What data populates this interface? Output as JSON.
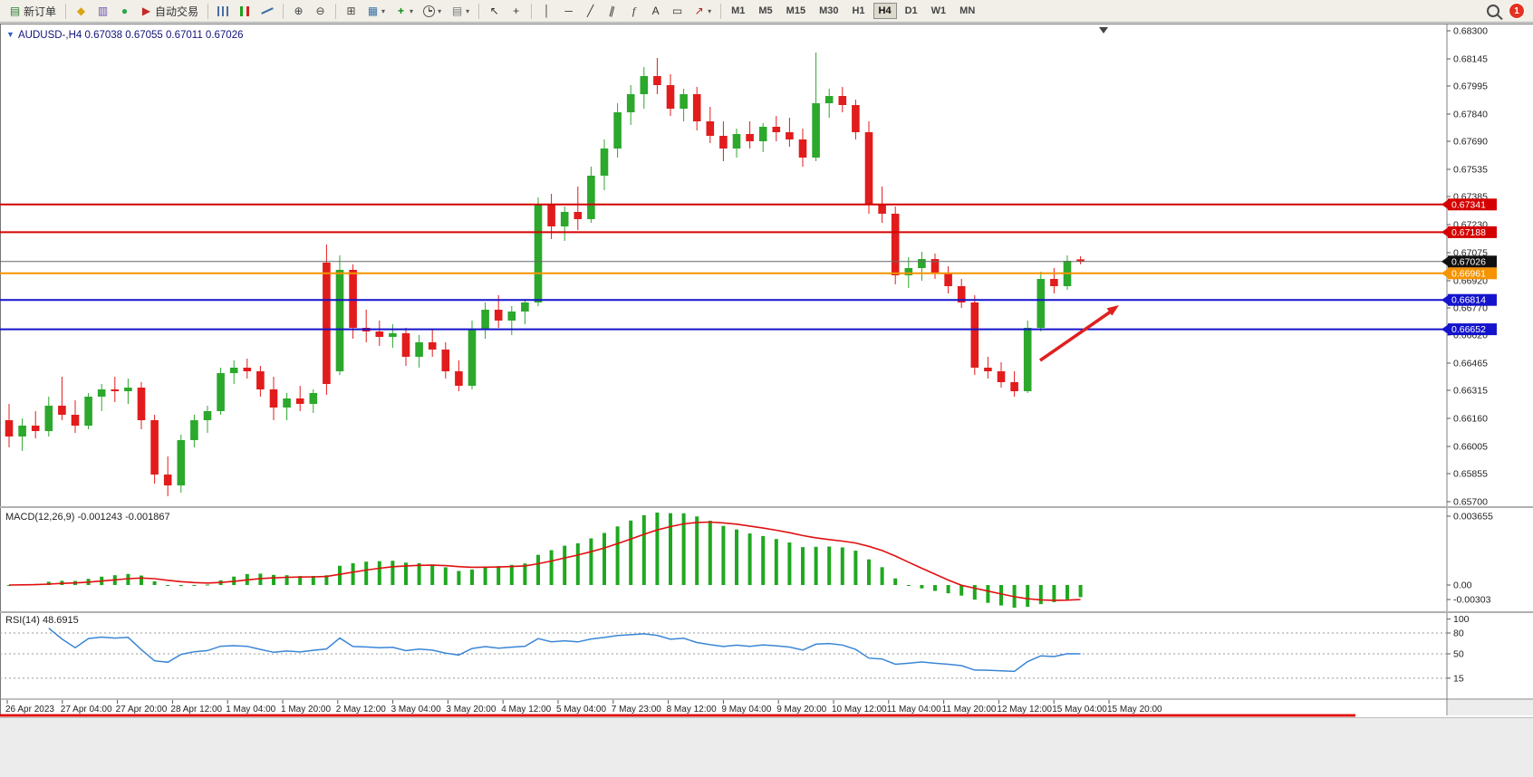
{
  "toolbar": {
    "badge_count": "1",
    "items": [
      {
        "name": "new-order",
        "icon": "new-order",
        "label": "新订单"
      },
      {
        "sep": true
      },
      {
        "name": "metaeditor",
        "icon": "metaeditor"
      },
      {
        "name": "market-watch",
        "icon": "market-watch"
      },
      {
        "name": "community",
        "icon": "community"
      },
      {
        "name": "auto-trading",
        "icon": "auto-trading",
        "label": "自动交易"
      },
      {
        "sep": true
      },
      {
        "name": "bar-chart",
        "icon": "bar-chart"
      },
      {
        "name": "candlestick-chart",
        "icon": "candlestick-chart"
      },
      {
        "name": "line-chart",
        "icon": "line-chart"
      },
      {
        "sep": true
      },
      {
        "name": "zoom-in",
        "icon": "zoom-in"
      },
      {
        "name": "zoom-out",
        "icon": "zoom-out"
      },
      {
        "sep": true
      },
      {
        "name": "tile-windows",
        "icon": "tile-windows"
      },
      {
        "name": "new-chart",
        "icon": "new-chart",
        "caret": true
      },
      {
        "name": "indicators",
        "icon": "indicators",
        "caret": true
      },
      {
        "name": "periods",
        "icon": "periods",
        "caret": true
      },
      {
        "name": "templates",
        "icon": "templates",
        "caret": true
      },
      {
        "sep": true
      },
      {
        "name": "cursor",
        "icon": "cursor"
      },
      {
        "name": "crosshair",
        "icon": "crosshair"
      },
      {
        "sep": true
      },
      {
        "name": "vertical-line",
        "icon": "vertical-line"
      },
      {
        "name": "horizontal-line",
        "icon": "horizontal-line"
      },
      {
        "name": "trendline",
        "icon": "trendline"
      },
      {
        "name": "equidistant-channel",
        "icon": "equidistant-channel"
      },
      {
        "name": "fibonacci",
        "icon": "fibonacci"
      },
      {
        "name": "text",
        "icon": "text"
      },
      {
        "name": "text-label",
        "icon": "text-label"
      },
      {
        "name": "arrows",
        "icon": "arrows",
        "caret": true
      },
      {
        "sep": true
      }
    ],
    "timeframes": [
      "M1",
      "M5",
      "M15",
      "M30",
      "H1",
      "H4",
      "D1",
      "W1",
      "MN"
    ],
    "active_timeframe": "H4"
  },
  "chart_window": {
    "title": "AUDUSD-,H4 0.67038 0.67055 0.67011 0.67026",
    "symbol": "AUDUSD-",
    "period": "H4",
    "ohlc": {
      "open": "0.67038",
      "high": "0.67055",
      "low": "0.67011",
      "close": "0.67026"
    }
  },
  "chart_data": {
    "type": "candlestick",
    "symbol": "AUDUSD-",
    "timeframe": "H4",
    "colors": {
      "up": "#2ca82c",
      "down": "#e21c1c",
      "level_red": "#d40000",
      "level_orange": "#f59300",
      "level_blue": "#1414cc",
      "current": "#111111",
      "macd_hist": "#1fa81f",
      "macd_signal": "#e01010",
      "rsi_line": "#3a86d6"
    },
    "y_axis": [
      "0.68300",
      "0.68145",
      "0.67995",
      "0.67840",
      "0.67690",
      "0.67535",
      "0.67385",
      "0.67230",
      "0.67075",
      "0.66920",
      "0.66770",
      "0.66620",
      "0.66465",
      "0.66315",
      "0.66160",
      "0.66005",
      "0.65855",
      "0.65700"
    ],
    "x_axis": [
      "26 Apr 2023",
      "27 Apr 04:00",
      "27 Apr 20:00",
      "28 Apr 12:00",
      "1 May 04:00",
      "1 May 20:00",
      "2 May 12:00",
      "3 May 04:00",
      "3 May 20:00",
      "4 May 12:00",
      "5 May 04:00",
      "7 May 23:00",
      "8 May 12:00",
      "9 May 04:00",
      "9 May 20:00",
      "10 May 12:00",
      "11 May 04:00",
      "11 May 20:00",
      "12 May 12:00",
      "15 May 04:00",
      "15 May 20:00"
    ],
    "levels": [
      {
        "price": 0.67341,
        "label": "0.67341",
        "color": "#d40000"
      },
      {
        "price": 0.67188,
        "label": "0.67188",
        "color": "#d40000"
      },
      {
        "price": 0.66961,
        "label": "0.66961",
        "color": "#f59300"
      },
      {
        "price": 0.66814,
        "label": "0.66814",
        "color": "#1414cc"
      },
      {
        "price": 0.66652,
        "label": "0.66652",
        "color": "#1414cc"
      }
    ],
    "current_price": {
      "value": 0.67026,
      "label": "0.67026"
    },
    "annotation_arrow": {
      "color": "#e02020",
      "direction": "up-right"
    },
    "candles": [
      [
        0.6615,
        0.6624,
        0.66,
        0.6606
      ],
      [
        0.6606,
        0.6616,
        0.6598,
        0.6612
      ],
      [
        0.6612,
        0.662,
        0.6605,
        0.6609
      ],
      [
        0.6609,
        0.6628,
        0.6606,
        0.6623
      ],
      [
        0.6623,
        0.6639,
        0.6615,
        0.6618
      ],
      [
        0.6618,
        0.6626,
        0.6608,
        0.6612
      ],
      [
        0.6612,
        0.663,
        0.661,
        0.6628
      ],
      [
        0.6628,
        0.6635,
        0.662,
        0.6632
      ],
      [
        0.6632,
        0.6639,
        0.6625,
        0.6631
      ],
      [
        0.6631,
        0.6638,
        0.6624,
        0.6633
      ],
      [
        0.6633,
        0.6636,
        0.661,
        0.6615
      ],
      [
        0.6615,
        0.6618,
        0.658,
        0.6585
      ],
      [
        0.6585,
        0.6595,
        0.6573,
        0.6579
      ],
      [
        0.6579,
        0.6607,
        0.6575,
        0.6604
      ],
      [
        0.6604,
        0.6618,
        0.66,
        0.6615
      ],
      [
        0.6615,
        0.6623,
        0.6608,
        0.662
      ],
      [
        0.662,
        0.6644,
        0.6618,
        0.6641
      ],
      [
        0.6641,
        0.6648,
        0.6635,
        0.6644
      ],
      [
        0.6644,
        0.6649,
        0.6638,
        0.6642
      ],
      [
        0.6642,
        0.6645,
        0.6628,
        0.6632
      ],
      [
        0.6632,
        0.6639,
        0.6615,
        0.6622
      ],
      [
        0.6622,
        0.663,
        0.6615,
        0.6627
      ],
      [
        0.6627,
        0.6634,
        0.662,
        0.6624
      ],
      [
        0.6624,
        0.6632,
        0.6619,
        0.663
      ],
      [
        0.6702,
        0.6712,
        0.6629,
        0.6635
      ],
      [
        0.6642,
        0.6706,
        0.664,
        0.6698
      ],
      [
        0.6698,
        0.6701,
        0.666,
        0.6666
      ],
      [
        0.6666,
        0.6676,
        0.6658,
        0.6664
      ],
      [
        0.6664,
        0.667,
        0.6656,
        0.6661
      ],
      [
        0.6661,
        0.6668,
        0.6655,
        0.6663
      ],
      [
        0.6663,
        0.6666,
        0.6645,
        0.665
      ],
      [
        0.665,
        0.6662,
        0.6644,
        0.6658
      ],
      [
        0.6658,
        0.6665,
        0.665,
        0.6654
      ],
      [
        0.6654,
        0.6658,
        0.6638,
        0.6642
      ],
      [
        0.6642,
        0.6648,
        0.6631,
        0.6634
      ],
      [
        0.6634,
        0.667,
        0.6632,
        0.6665
      ],
      [
        0.6665,
        0.668,
        0.666,
        0.6676
      ],
      [
        0.6676,
        0.6684,
        0.6666,
        0.667
      ],
      [
        0.667,
        0.6678,
        0.6662,
        0.6675
      ],
      [
        0.6675,
        0.6682,
        0.6668,
        0.668
      ],
      [
        0.668,
        0.6738,
        0.6678,
        0.6734
      ],
      [
        0.6734,
        0.674,
        0.6715,
        0.6722
      ],
      [
        0.6722,
        0.6733,
        0.6714,
        0.673
      ],
      [
        0.673,
        0.6744,
        0.672,
        0.6726
      ],
      [
        0.6726,
        0.6755,
        0.6724,
        0.675
      ],
      [
        0.675,
        0.677,
        0.6742,
        0.6765
      ],
      [
        0.6765,
        0.679,
        0.676,
        0.6785
      ],
      [
        0.6785,
        0.68,
        0.6778,
        0.6795
      ],
      [
        0.6795,
        0.681,
        0.6787,
        0.6805
      ],
      [
        0.6805,
        0.6815,
        0.6795,
        0.68
      ],
      [
        0.68,
        0.6806,
        0.6783,
        0.6787
      ],
      [
        0.6787,
        0.6798,
        0.678,
        0.6795
      ],
      [
        0.6795,
        0.6799,
        0.6775,
        0.678
      ],
      [
        0.678,
        0.6788,
        0.6768,
        0.6772
      ],
      [
        0.6772,
        0.678,
        0.6758,
        0.6765
      ],
      [
        0.6765,
        0.6776,
        0.676,
        0.6773
      ],
      [
        0.6773,
        0.678,
        0.6765,
        0.6769
      ],
      [
        0.6769,
        0.6779,
        0.6763,
        0.6777
      ],
      [
        0.6777,
        0.6783,
        0.6769,
        0.6774
      ],
      [
        0.6774,
        0.6782,
        0.6766,
        0.677
      ],
      [
        0.677,
        0.6776,
        0.6755,
        0.676
      ],
      [
        0.676,
        0.6818,
        0.6758,
        0.679
      ],
      [
        0.679,
        0.6798,
        0.6782,
        0.6794
      ],
      [
        0.6794,
        0.6799,
        0.6785,
        0.6789
      ],
      [
        0.6789,
        0.6792,
        0.677,
        0.6774
      ],
      [
        0.6774,
        0.678,
        0.6729,
        0.6734
      ],
      [
        0.6734,
        0.6744,
        0.6724,
        0.6729
      ],
      [
        0.6729,
        0.6733,
        0.669,
        0.6695
      ],
      [
        0.6695,
        0.6705,
        0.6688,
        0.6699
      ],
      [
        0.6699,
        0.6708,
        0.6692,
        0.6704
      ],
      [
        0.6704,
        0.6707,
        0.6693,
        0.6696
      ],
      [
        0.6696,
        0.67,
        0.6685,
        0.6689
      ],
      [
        0.6689,
        0.6693,
        0.6677,
        0.668
      ],
      [
        0.668,
        0.6684,
        0.664,
        0.6644
      ],
      [
        0.6644,
        0.665,
        0.6638,
        0.6642
      ],
      [
        0.6642,
        0.6647,
        0.6633,
        0.6636
      ],
      [
        0.6636,
        0.6642,
        0.6628,
        0.6631
      ],
      [
        0.6631,
        0.667,
        0.663,
        0.6666
      ],
      [
        0.6666,
        0.6697,
        0.6664,
        0.6693
      ],
      [
        0.6693,
        0.6699,
        0.6685,
        0.6689
      ],
      [
        0.6689,
        0.6706,
        0.6687,
        0.6703
      ],
      [
        0.67038,
        0.67055,
        0.67011,
        0.67026
      ]
    ]
  },
  "macd": {
    "label": "MACD(12,26,9) -0.001243 -0.001867",
    "params": [
      12,
      26,
      9
    ],
    "main_value": "-0.001243",
    "signal_value": "-0.001867",
    "y_ticks": [
      "0.003655",
      "0.00",
      "-0.00303"
    ]
  },
  "rsi": {
    "label": "RSI(14) 48.6915",
    "period": 14,
    "value": "48.6915",
    "y_ticks": [
      "100",
      "80",
      "50",
      "15"
    ],
    "levels": [
      80,
      50,
      15
    ]
  }
}
